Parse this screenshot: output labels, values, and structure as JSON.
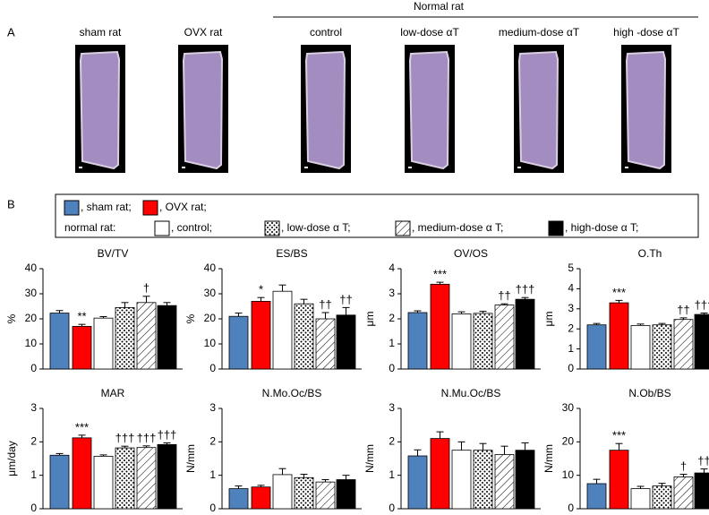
{
  "panel_a": {
    "label": "A",
    "header": "Normal rat",
    "samples": [
      "sham rat",
      "OVX rat",
      "control",
      "low-dose αT",
      "medium-dose αT",
      "high -dose αT"
    ]
  },
  "panel_b_label": "B",
  "legend": {
    "row_label": "normal rat:",
    "items": [
      {
        "label": ", sham rat;",
        "fill": "#4f81bd"
      },
      {
        "label": ", OVX rat;",
        "fill": "#ff0000"
      },
      {
        "label": ", control;",
        "fill": "#ffffff"
      },
      {
        "label": ", low-dose α T;",
        "fill": "dots"
      },
      {
        "label": ", medium-dose α T;",
        "fill": "hatch"
      },
      {
        "label": ", high-dose α T;",
        "fill": "#000000"
      }
    ]
  },
  "chart_data": [
    {
      "type": "bar",
      "title": "BV/TV",
      "ylabel": "%",
      "ylim": [
        0,
        40
      ],
      "yticks": [
        0,
        10,
        20,
        30,
        40
      ],
      "values": [
        22.3,
        17,
        20.3,
        24.5,
        26.5,
        25.3
      ],
      "errors": [
        1,
        0.8,
        0.6,
        2,
        2.5,
        1.2
      ],
      "annotations": [
        null,
        "**",
        null,
        null,
        "†",
        null
      ]
    },
    {
      "type": "bar",
      "title": "ES/BS",
      "ylabel": "%",
      "ylim": [
        0,
        40
      ],
      "yticks": [
        0,
        10,
        20,
        30,
        40
      ],
      "values": [
        21,
        27,
        31,
        26,
        20,
        21.5
      ],
      "errors": [
        1.3,
        1.5,
        2.5,
        1.8,
        2.5,
        3
      ],
      "annotations": [
        null,
        "*",
        null,
        null,
        "††",
        "††"
      ]
    },
    {
      "type": "bar",
      "title": "OV/OS",
      "ylabel": "μm",
      "ylim": [
        0,
        4
      ],
      "yticks": [
        0,
        1,
        2,
        3,
        4
      ],
      "values": [
        2.25,
        3.38,
        2.2,
        2.22,
        2.55,
        2.78
      ],
      "errors": [
        0.07,
        0.08,
        0.08,
        0.08,
        0.05,
        0.07
      ],
      "annotations": [
        null,
        "***",
        null,
        null,
        "††",
        "†††"
      ]
    },
    {
      "type": "bar",
      "title": "O.Th",
      "ylabel": "μm",
      "ylim": [
        0,
        5
      ],
      "yticks": [
        0,
        1,
        2,
        3,
        4,
        5
      ],
      "values": [
        2.2,
        3.3,
        2.17,
        2.2,
        2.47,
        2.72
      ],
      "errors": [
        0.07,
        0.12,
        0.07,
        0.07,
        0.08,
        0.07
      ],
      "annotations": [
        null,
        "***",
        null,
        null,
        "††",
        "†††"
      ]
    },
    {
      "type": "bar",
      "title": "MAR",
      "ylabel": "μm/day",
      "ylim": [
        0,
        3
      ],
      "yticks": [
        0,
        1,
        2,
        3
      ],
      "values": [
        1.6,
        2.12,
        1.57,
        1.82,
        1.83,
        1.92
      ],
      "errors": [
        0.05,
        0.08,
        0.04,
        0.05,
        0.05,
        0.05
      ],
      "annotations": [
        null,
        "***",
        null,
        "†††",
        "†††",
        "†††"
      ]
    },
    {
      "type": "bar",
      "title": "N.Mo.Oc/BS",
      "ylabel": "N/mm",
      "ylim": [
        0,
        3
      ],
      "yticks": [
        0,
        1,
        2,
        3
      ],
      "values": [
        0.6,
        0.65,
        1.02,
        0.93,
        0.8,
        0.87
      ],
      "errors": [
        0.08,
        0.05,
        0.18,
        0.1,
        0.07,
        0.13
      ],
      "annotations": [
        null,
        null,
        null,
        null,
        null,
        null
      ]
    },
    {
      "type": "bar",
      "title": "N.Mu.Oc/BS",
      "ylabel": "N/mm",
      "ylim": [
        0,
        3
      ],
      "yticks": [
        0,
        1,
        2,
        3
      ],
      "values": [
        1.58,
        2.1,
        1.75,
        1.75,
        1.62,
        1.75
      ],
      "errors": [
        0.18,
        0.2,
        0.25,
        0.2,
        0.25,
        0.22
      ],
      "annotations": [
        null,
        null,
        null,
        null,
        null,
        null
      ]
    },
    {
      "type": "bar",
      "title": "N.Ob/BS",
      "ylabel": "N/mm",
      "ylim": [
        0,
        30
      ],
      "yticks": [
        0,
        10,
        20,
        30
      ],
      "values": [
        7.5,
        17.5,
        6,
        6.8,
        9.5,
        10.7
      ],
      "errors": [
        1.3,
        2,
        0.7,
        0.8,
        0.8,
        1.2
      ],
      "annotations": [
        null,
        "***",
        null,
        null,
        "†",
        "††"
      ]
    }
  ]
}
